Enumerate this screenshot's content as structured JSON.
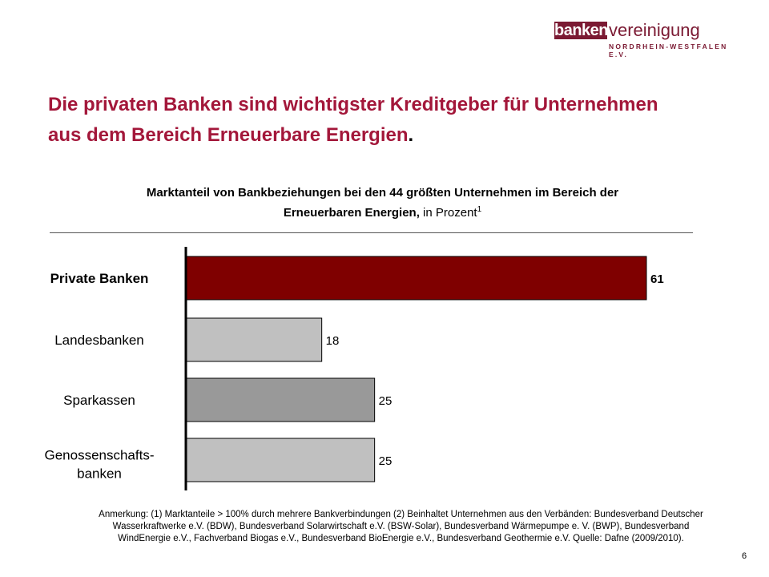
{
  "logo": {
    "box_text": "banken",
    "word": "vereinigung",
    "sub": "NORDRHEIN-WESTFALEN E.V."
  },
  "headline": {
    "line1": "Die privaten Banken sind wichtigster Kreditgeber für Unternehmen",
    "line2": "aus dem Bereich Erneuerbare Energien",
    "dot": "."
  },
  "subtitle": {
    "bold1": "Marktanteil von Bankbeziehungen bei den 44 größten Unternehmen im Bereich der",
    "bold2": "Erneuerbaren Energien,",
    "normal": " in Prozent",
    "sup": "1"
  },
  "chart_data": {
    "type": "bar",
    "orientation": "horizontal",
    "categories": [
      "Private Banken",
      "Landesbanken",
      "Sparkassen",
      "Genossenschafts-\nbanken"
    ],
    "values": [
      61,
      18,
      25,
      25
    ],
    "data_labels": [
      "61",
      "18",
      "25",
      "25"
    ],
    "xlim": [
      0,
      61
    ],
    "grid": false,
    "legend": "none",
    "colors": [
      "#7f0000",
      "#c0c0c0",
      "#999999",
      "#c0c0c0"
    ],
    "highlighted_category": "Private Banken"
  },
  "footnote": {
    "line1": "Anmerkung: (1) Marktanteile > 100% durch mehrere Bankverbindungen (2) Beinhaltet Unternehmen aus den Verbänden: Bundesverband Deutscher",
    "line2": "Wasserkraftwerke e.V. (BDW), Bundesverband Solarwirtschaft e.V. (BSW-Solar), Bundesverband Wärmepumpe e. V. (BWP), Bundesverband",
    "line3": "WindEnergie e.V., Fachverband Biogas e.V., Bundesverband BioEnergie e.V., Bundesverband Geothermie e.V.     Quelle: Dafne (2009/2010)."
  },
  "page_number": "6"
}
